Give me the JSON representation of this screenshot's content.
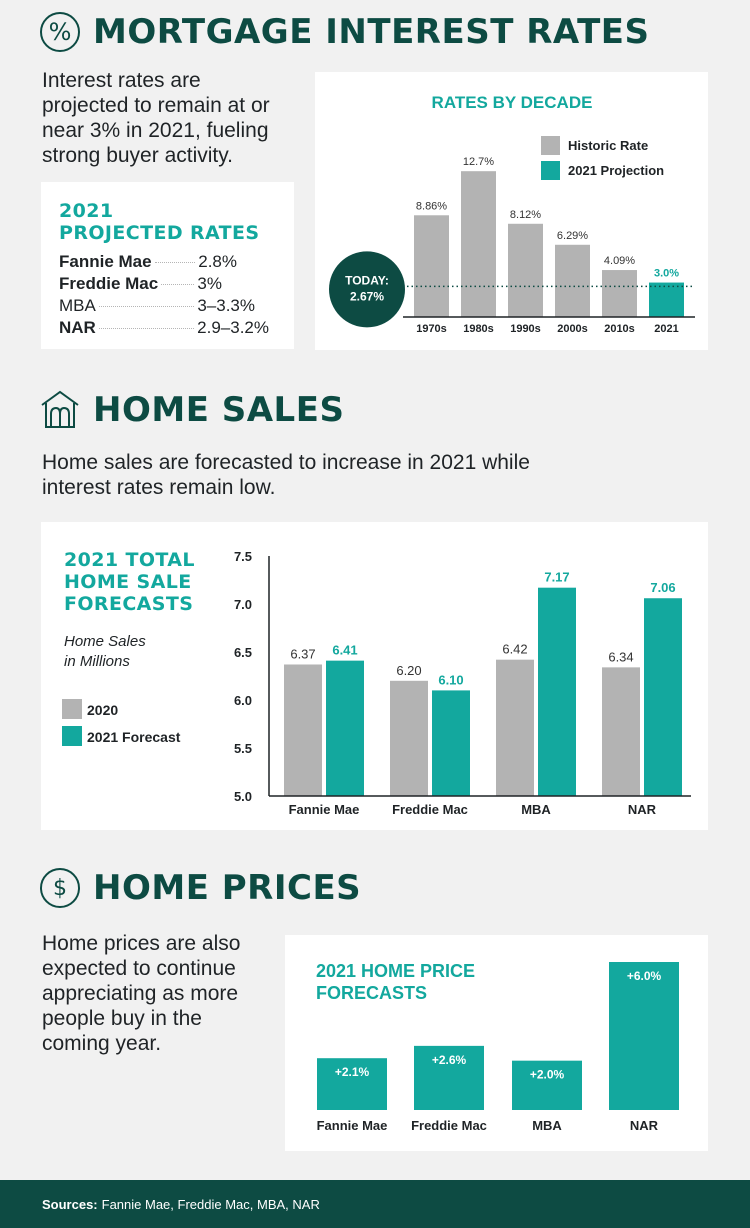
{
  "colors": {
    "historic": "#b3b3b3",
    "projection": "#13a89e",
    "dark": "#0d4b43",
    "background": "#f1f1f1"
  },
  "mortgage": {
    "icon": "percent-icon",
    "title": "MORTGAGE INTEREST RATES",
    "intro": [
      "Interest rates are",
      "projected to remain at or",
      "near 3% in 2021, fueling",
      "strong buyer activity."
    ],
    "projected": {
      "title_line1": "2021",
      "title_line2": "PROJECTED RATES",
      "rows": [
        {
          "name": "Fannie Mae",
          "value": "2.8%"
        },
        {
          "name": "Freddie Mac",
          "value": "3%"
        },
        {
          "name": "MBA",
          "value": "3–3.3%"
        },
        {
          "name": "NAR",
          "value": "2.9–3.2%"
        }
      ]
    }
  },
  "sales": {
    "icon": "house-icon",
    "title": "HOME SALES",
    "intro": [
      "Home sales are forecasted to increase in 2021 while",
      "interest rates remain low."
    ],
    "card_title": [
      "2021 TOTAL",
      "HOME SALE",
      "FORECASTS"
    ],
    "subtitle": [
      "Home Sales",
      "in Millions"
    ]
  },
  "prices": {
    "icon": "dollar-icon",
    "title": "HOME PRICES",
    "intro": [
      "Home prices are also",
      "expected to continue",
      "appreciating as more",
      "people buy in the",
      "coming year."
    ]
  },
  "footer": {
    "label": "Sources:",
    "text": "Fannie Mae, Freddie Mac, MBA, NAR"
  },
  "chart_data": [
    {
      "type": "bar",
      "title": "RATES BY DECADE",
      "categories": [
        "1970s",
        "1980s",
        "1990s",
        "2000s",
        "2010s",
        "2021"
      ],
      "values": [
        8.86,
        12.7,
        8.12,
        6.29,
        4.09,
        3.0
      ],
      "labels": [
        "8.86%",
        "12.7%",
        "8.12%",
        "6.29%",
        "4.09%",
        "3.0%"
      ],
      "series_type": [
        "historic",
        "historic",
        "historic",
        "historic",
        "historic",
        "projection"
      ],
      "legend": [
        "Historic Rate",
        "2021 Projection"
      ],
      "legend_position": "top-right",
      "reference": {
        "label_line1": "TODAY:",
        "label_line2": "2.67%",
        "value": 2.67
      },
      "ylim": [
        0,
        13.5
      ]
    },
    {
      "type": "bar",
      "categories": [
        "Fannie Mae",
        "Freddie Mac",
        "MBA",
        "NAR"
      ],
      "series": [
        {
          "name": "2020",
          "values": [
            6.37,
            6.2,
            6.42,
            6.34
          ],
          "labels": [
            "6.37",
            "6.20",
            "6.42",
            "6.34"
          ]
        },
        {
          "name": "2021 Forecast",
          "values": [
            6.41,
            6.1,
            7.17,
            7.06
          ],
          "labels": [
            "6.41",
            "6.10",
            "7.17",
            "7.06"
          ]
        }
      ],
      "yticks": [
        "7.5",
        "7.0",
        "6.5",
        "6.0",
        "5.5",
        "5.0"
      ],
      "ylim": [
        5.0,
        7.5
      ],
      "legend_position": "left",
      "grid": false
    },
    {
      "type": "bar",
      "title": [
        "2021 HOME PRICE",
        "FORECASTS"
      ],
      "categories": [
        "Fannie Mae",
        "Freddie Mac",
        "MBA",
        "NAR"
      ],
      "values": [
        2.1,
        2.6,
        2.0,
        6.0
      ],
      "labels": [
        "+2.1%",
        "+2.6%",
        "+2.0%",
        "+6.0%"
      ]
    }
  ]
}
